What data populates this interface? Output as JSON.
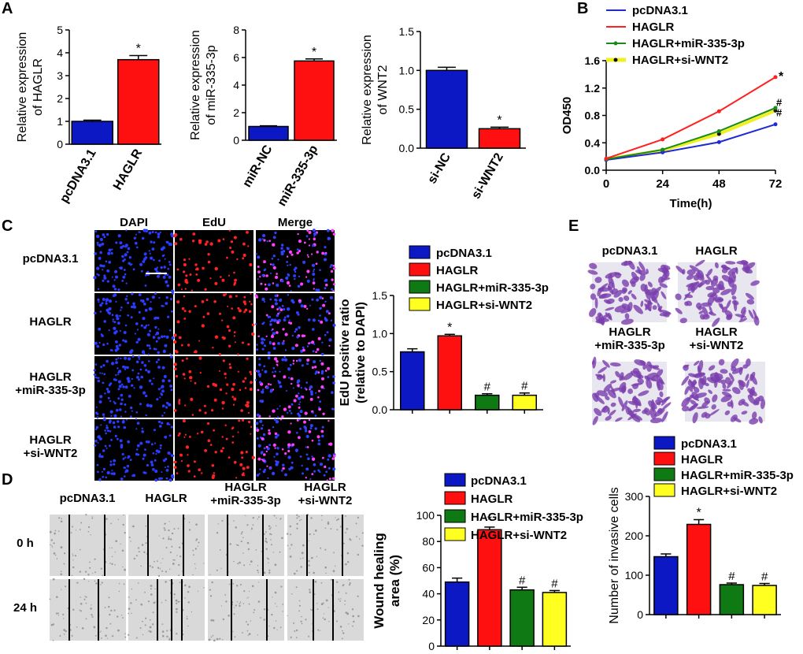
{
  "panels": {
    "A": "A",
    "B": "B",
    "C": "C",
    "D": "D",
    "E": "E"
  },
  "colors": {
    "blue": "#0b18c4",
    "red": "#ff1010",
    "green": "#0f7a14",
    "yellow": "#ffff20",
    "line_blue": "#1f2bd0",
    "line_red": "#ff2020",
    "line_green": "#1a8a1a",
    "line_yellow": "#f0f020"
  },
  "chart_a1": {
    "type": "bar",
    "ylabel_line1": "Relative expression",
    "ylabel_line2": "of HAGLR",
    "categories": [
      "pcDNA3.1",
      "HAGLR"
    ],
    "values": [
      1.0,
      3.7
    ],
    "errors": [
      0.05,
      0.18
    ],
    "marks": [
      "",
      "*"
    ],
    "ylim": [
      0,
      5
    ],
    "yticks": [
      "0",
      "1",
      "2",
      "3",
      "4",
      "5"
    ]
  },
  "chart_a2": {
    "type": "bar",
    "ylabel_line1": "Relative expression",
    "ylabel_line2": "of miR-335-3p",
    "categories": [
      "miR-NC",
      "miR-335-3p"
    ],
    "values": [
      1.0,
      5.75
    ],
    "errors": [
      0.05,
      0.15
    ],
    "marks": [
      "",
      "*"
    ],
    "ylim": [
      0,
      8
    ],
    "yticks": [
      "0",
      "2",
      "4",
      "6",
      "8"
    ]
  },
  "chart_a3": {
    "type": "bar",
    "ylabel_line1": "Relative expression",
    "ylabel_line2": "of WNT2",
    "categories": [
      "si-NC",
      "si-WNT2"
    ],
    "values": [
      1.0,
      0.25
    ],
    "errors": [
      0.04,
      0.02
    ],
    "marks": [
      "",
      "*"
    ],
    "ylim": [
      0,
      1.5
    ],
    "yticks": [
      "0.0",
      "0.5",
      "1.0",
      "1.5"
    ]
  },
  "chart_data": [
    {
      "type": "line",
      "title": "",
      "xlabel": "Time(h)",
      "ylabel": "OD450",
      "x": [
        0,
        24,
        48,
        72
      ],
      "xticks": [
        "0",
        "24",
        "48",
        "72"
      ],
      "yticks": [
        "0.0",
        "0.4",
        "0.8",
        "1.2",
        "1.6"
      ],
      "ylim": [
        0,
        1.6
      ],
      "series": [
        {
          "name": "pcDNA3.1",
          "values": [
            0.15,
            0.26,
            0.41,
            0.67
          ]
        },
        {
          "name": "HAGLR",
          "values": [
            0.17,
            0.45,
            0.86,
            1.36
          ]
        },
        {
          "name": "HAGLR+miR-335-3p",
          "values": [
            0.16,
            0.3,
            0.57,
            0.91
          ]
        },
        {
          "name": "HAGLR+si-WNT2",
          "values": [
            0.16,
            0.29,
            0.53,
            0.87
          ]
        }
      ],
      "marks": [
        "*",
        "#",
        "#"
      ]
    },
    {
      "type": "bar",
      "ylabel_line1": "EdU positive  ratio",
      "ylabel_line2": "(relative to DAPI)",
      "categories": [
        "pcDNA3.1",
        "HAGLR",
        "HAGLR+miR-335-3p",
        "HAGLR+si-WNT2"
      ],
      "values": [
        0.76,
        0.97,
        0.19,
        0.19
      ],
      "errors": [
        0.04,
        0.02,
        0.02,
        0.03
      ],
      "marks": [
        "",
        "*",
        "#",
        "#"
      ],
      "ylim": [
        0,
        1.5
      ],
      "yticks": [
        "0.0",
        "0.5",
        "1.0",
        "1.5"
      ]
    },
    {
      "type": "bar",
      "ylabel_line1": "Wound healing",
      "ylabel_line2": "area (%)",
      "categories": [
        "pcDNA3.1",
        "HAGLR",
        "HAGLR+miR-335-3p",
        "HAGLR+si-WNT2"
      ],
      "values": [
        49,
        89,
        43,
        41
      ],
      "errors": [
        3,
        2,
        2,
        1.5
      ],
      "marks": [
        "",
        "*",
        "#",
        "#"
      ],
      "ylim": [
        0,
        100
      ],
      "yticks": [
        "0",
        "20",
        "40",
        "60",
        "80",
        "100"
      ]
    },
    {
      "type": "bar",
      "ylabel_line1": "Number of invasive cells",
      "ylabel_line2": "",
      "categories": [
        "pcDNA3.1",
        "HAGLR",
        "HAGLR+miR-335-3p",
        "HAGLR+si-WNT2"
      ],
      "values": [
        147,
        229,
        76,
        74
      ],
      "errors": [
        7,
        12,
        4,
        5
      ],
      "marks": [
        "",
        "*",
        "#",
        "#"
      ],
      "ylim": [
        0,
        300
      ],
      "yticks": [
        "0",
        "100",
        "200",
        "300"
      ]
    }
  ],
  "legend": {
    "pcDNA3.1": "pcDNA3.1",
    "HAGLR": "HAGLR",
    "mir": "HAGLR+miR-335-3p",
    "siwnt": "HAGLR+si-WNT2"
  },
  "panel_c": {
    "columns": [
      "DAPI",
      "EdU",
      "Merge"
    ],
    "rows": [
      "pcDNA3.1",
      "HAGLR",
      "HAGLR\n+miR-335-3p",
      "HAGLR\n+si-WNT2"
    ]
  },
  "panel_d": {
    "columns": [
      "pcDNA3.1",
      "HAGLR",
      "HAGLR\n+miR-335-3p",
      "HAGLR\n+si-WNT2"
    ],
    "rows": [
      "0 h",
      "24 h"
    ]
  },
  "panel_e": {
    "labels": [
      "pcDNA3.1",
      "HAGLR",
      "HAGLR\n+miR-335-3p",
      "HAGLR\n+si-WNT2"
    ]
  }
}
